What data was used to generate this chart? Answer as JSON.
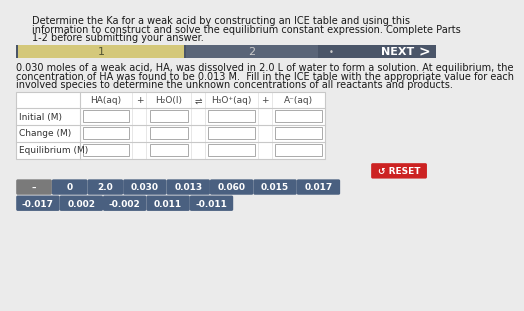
{
  "bg_color": "#ebebeb",
  "title_text1": "Determine the Ka for a weak acid by constructing an ICE table and using this",
  "title_text2": "information to construct and solve the equilibrium constant expression. Complete Parts",
  "title_text3": "1-2 before submitting your answer.",
  "problem_line1": "0.030 moles of a weak acid, HA, was dissolved in 2.0 L of water to form a solution. At equilibrium, the",
  "problem_line2": "concentration of HA was found to be 0.013 M.  Fill in the ICE table with the appropriate value for each",
  "problem_line3": "involved species to determine the unknown concentrations of all reactants and products.",
  "nav_bar_bg": "#4a5568",
  "nav_tab1_bg": "#d4c87a",
  "nav_tab1_text": "1",
  "nav_tab2_text": "2",
  "nav_next_text": "NEXT",
  "nav_arrow": ">",
  "table_headers": [
    "HA(aq)",
    "+",
    "H₂O(l)",
    "⇌",
    "H₃O⁺(aq)",
    "+",
    "A⁻(aq)"
  ],
  "row_labels": [
    "Initial (M)",
    "Change (M)",
    "Equilibrium (M)"
  ],
  "table_border": "#c8c8c8",
  "button_bg_dark": "#4a6080",
  "button_bg_gray": "#7a7a7a",
  "button_bg_red": "#cc2222",
  "bottom_buttons_row1": [
    "–",
    "0",
    "2.0",
    "0.030",
    "0.013",
    "0.060",
    "0.015",
    "0.017"
  ],
  "bottom_buttons_row2": [
    "-0.017",
    "0.002",
    "-0.002",
    "0.011",
    "-0.011"
  ],
  "reset_button_text": "↺ RESET"
}
